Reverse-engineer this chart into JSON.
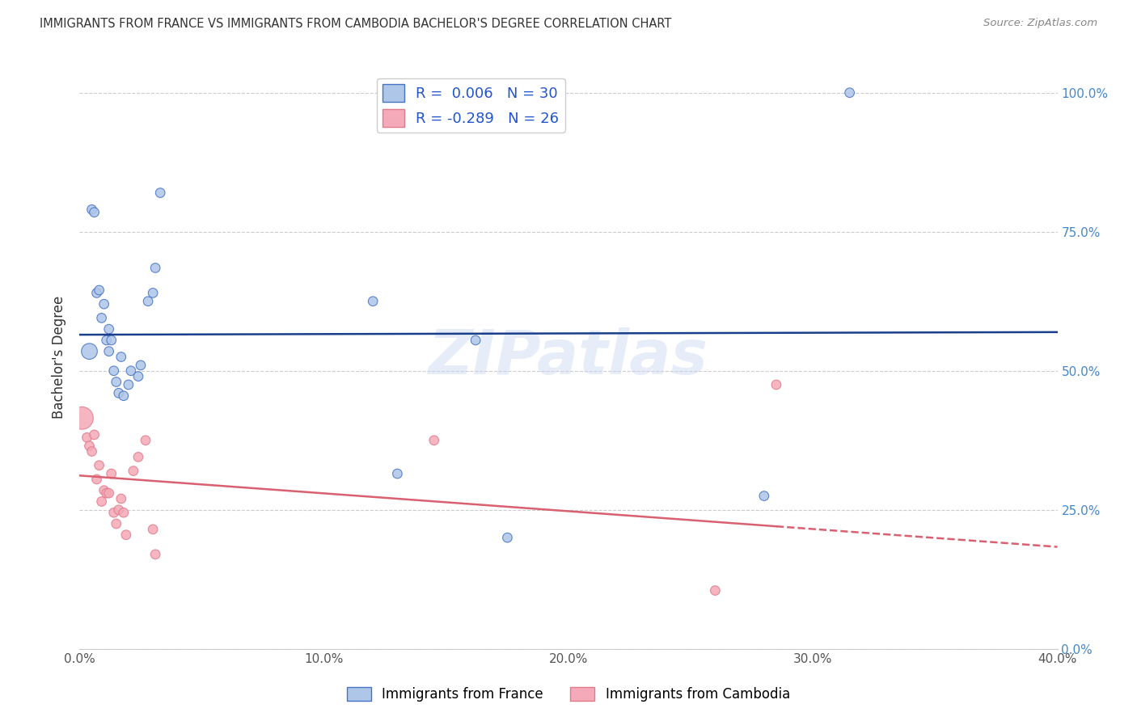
{
  "title": "IMMIGRANTS FROM FRANCE VS IMMIGRANTS FROM CAMBODIA BACHELOR'S DEGREE CORRELATION CHART",
  "source": "Source: ZipAtlas.com",
  "ylabel": "Bachelor's Degree",
  "xlim": [
    0.0,
    0.4
  ],
  "ylim": [
    0.0,
    1.05
  ],
  "france_color": "#aec6e8",
  "france_edge_color": "#4472c4",
  "cambodia_color": "#f4aab8",
  "cambodia_edge_color": "#e07a8a",
  "france_line_color": "#1a3f8a",
  "cambodia_line_color": "#d96070",
  "france_R": 0.006,
  "france_N": 30,
  "cambodia_R": -0.289,
  "cambodia_N": 26,
  "watermark": "ZIPatlas",
  "background_color": "#ffffff",
  "legend_france_label": "Immigrants from France",
  "legend_cambodia_label": "Immigrants from Cambodia",
  "france_x": [
    0.004,
    0.005,
    0.006,
    0.007,
    0.008,
    0.009,
    0.01,
    0.011,
    0.012,
    0.012,
    0.013,
    0.014,
    0.015,
    0.016,
    0.017,
    0.018,
    0.02,
    0.021,
    0.024,
    0.025,
    0.028,
    0.03,
    0.031,
    0.033,
    0.12,
    0.13,
    0.162,
    0.175,
    0.28,
    0.315
  ],
  "france_y": [
    0.535,
    0.79,
    0.785,
    0.64,
    0.645,
    0.595,
    0.62,
    0.555,
    0.575,
    0.535,
    0.555,
    0.5,
    0.48,
    0.46,
    0.525,
    0.455,
    0.475,
    0.5,
    0.49,
    0.51,
    0.625,
    0.64,
    0.685,
    0.82,
    0.625,
    0.315,
    0.555,
    0.2,
    0.275,
    1.0
  ],
  "france_sizes": [
    200,
    70,
    70,
    70,
    70,
    70,
    70,
    70,
    70,
    70,
    70,
    70,
    70,
    70,
    70,
    70,
    70,
    70,
    70,
    70,
    70,
    70,
    70,
    70,
    70,
    70,
    70,
    70,
    70,
    70
  ],
  "cambodia_x": [
    0.001,
    0.003,
    0.004,
    0.005,
    0.006,
    0.007,
    0.008,
    0.009,
    0.01,
    0.011,
    0.012,
    0.013,
    0.014,
    0.015,
    0.016,
    0.017,
    0.018,
    0.019,
    0.022,
    0.024,
    0.027,
    0.03,
    0.031,
    0.145,
    0.26,
    0.285
  ],
  "cambodia_y": [
    0.415,
    0.38,
    0.365,
    0.355,
    0.385,
    0.305,
    0.33,
    0.265,
    0.285,
    0.28,
    0.28,
    0.315,
    0.245,
    0.225,
    0.25,
    0.27,
    0.245,
    0.205,
    0.32,
    0.345,
    0.375,
    0.215,
    0.17,
    0.375,
    0.105,
    0.475
  ],
  "cambodia_sizes": [
    400,
    70,
    70,
    70,
    70,
    70,
    70,
    70,
    70,
    70,
    70,
    70,
    70,
    70,
    70,
    70,
    70,
    70,
    70,
    70,
    70,
    70,
    70,
    70,
    70,
    70
  ]
}
